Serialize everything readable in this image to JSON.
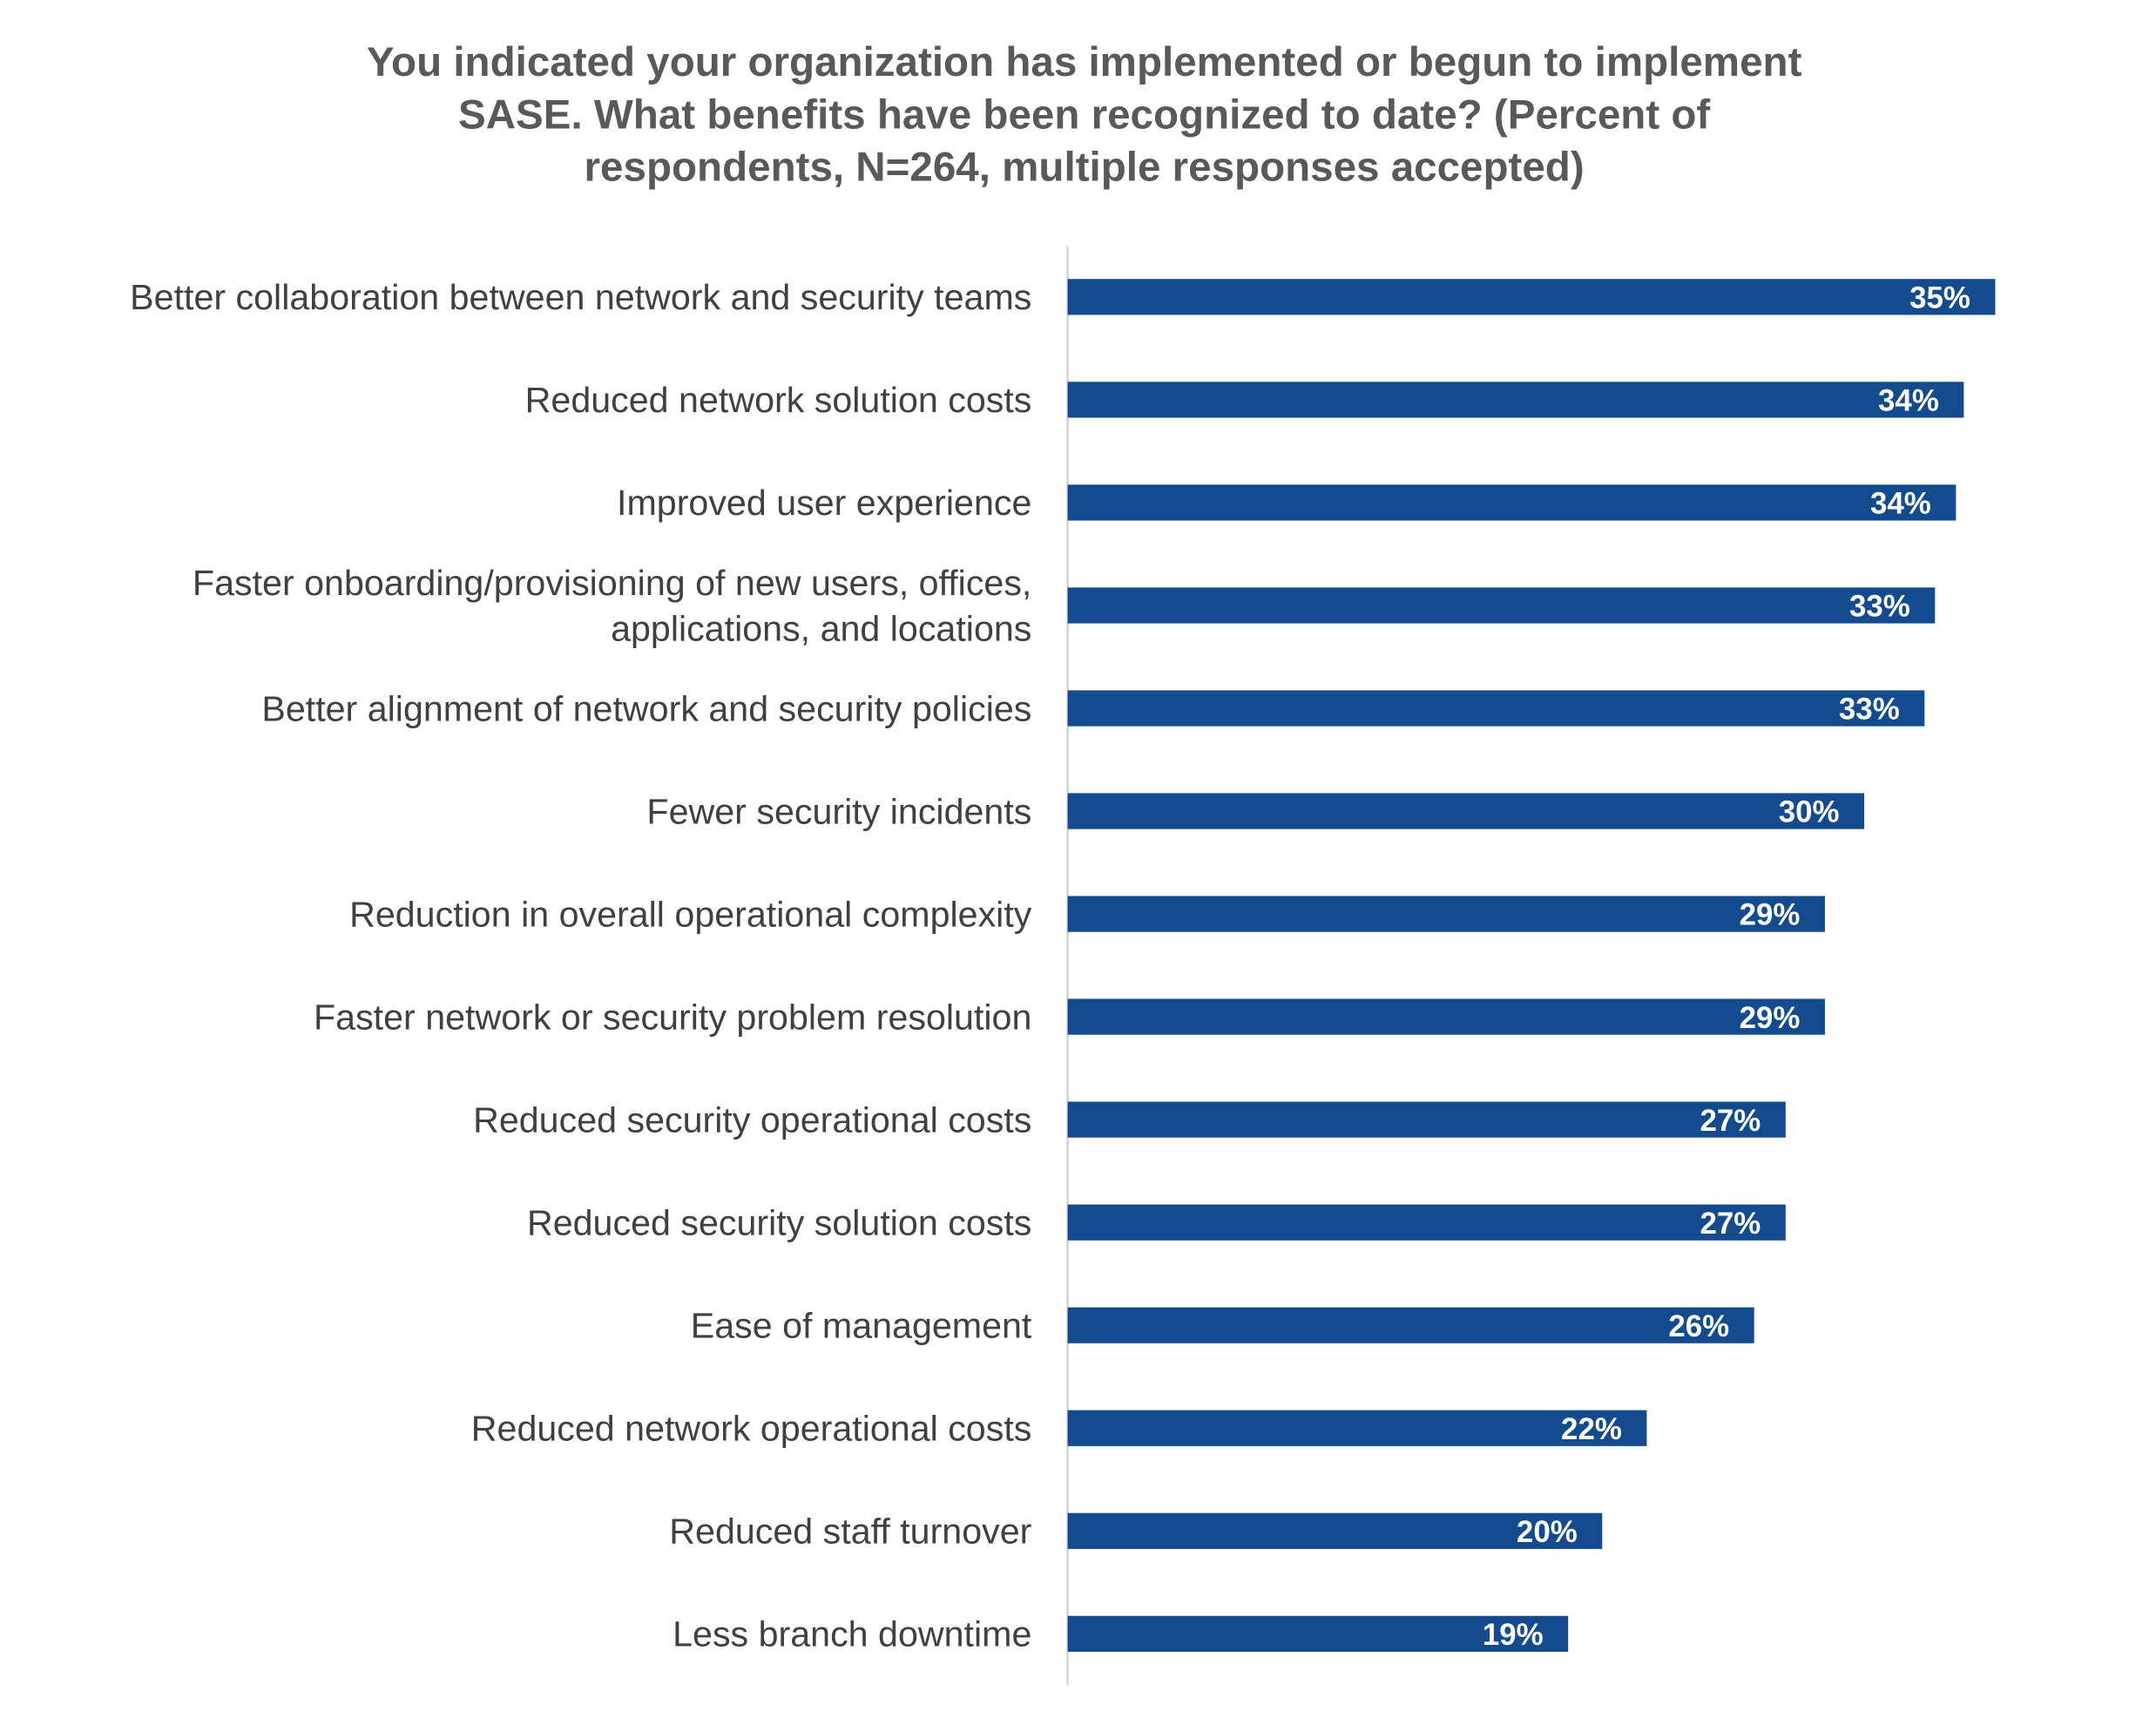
{
  "chart_data": {
    "type": "bar",
    "orientation": "horizontal",
    "title": [
      "You indicated your organization has implemented or begun to implement",
      "SASE. What benefits have been recognized to date? (Percent of",
      "respondents, N=264, multiple responses accepted)"
    ],
    "categories": [
      "Better collaboration between network and security teams",
      "Reduced network solution costs",
      "Improved user experience",
      "Faster onboarding/provisioning of new users, offices, applications, and locations",
      "Better alignment of network and security policies",
      "Fewer security incidents",
      "Reduction in overall operational complexity",
      "Faster network or security problem resolution",
      "Reduced security operational costs",
      "Reduced security solution costs",
      "Ease of management",
      "Reduced network operational costs",
      "Reduced staff turnover",
      "Less branch downtime"
    ],
    "values": [
      35.4,
      34.2,
      33.9,
      33.1,
      32.7,
      30.4,
      28.9,
      28.9,
      27.4,
      27.4,
      26.2,
      22.1,
      20.4,
      19.1
    ],
    "value_labels": [
      "35%",
      "34%",
      "34%",
      "33%",
      "33%",
      "30%",
      "29%",
      "29%",
      "27%",
      "27%",
      "26%",
      "22%",
      "20%",
      "19%"
    ],
    "color": "#134b8e",
    "xlim": [
      0,
      40
    ]
  }
}
